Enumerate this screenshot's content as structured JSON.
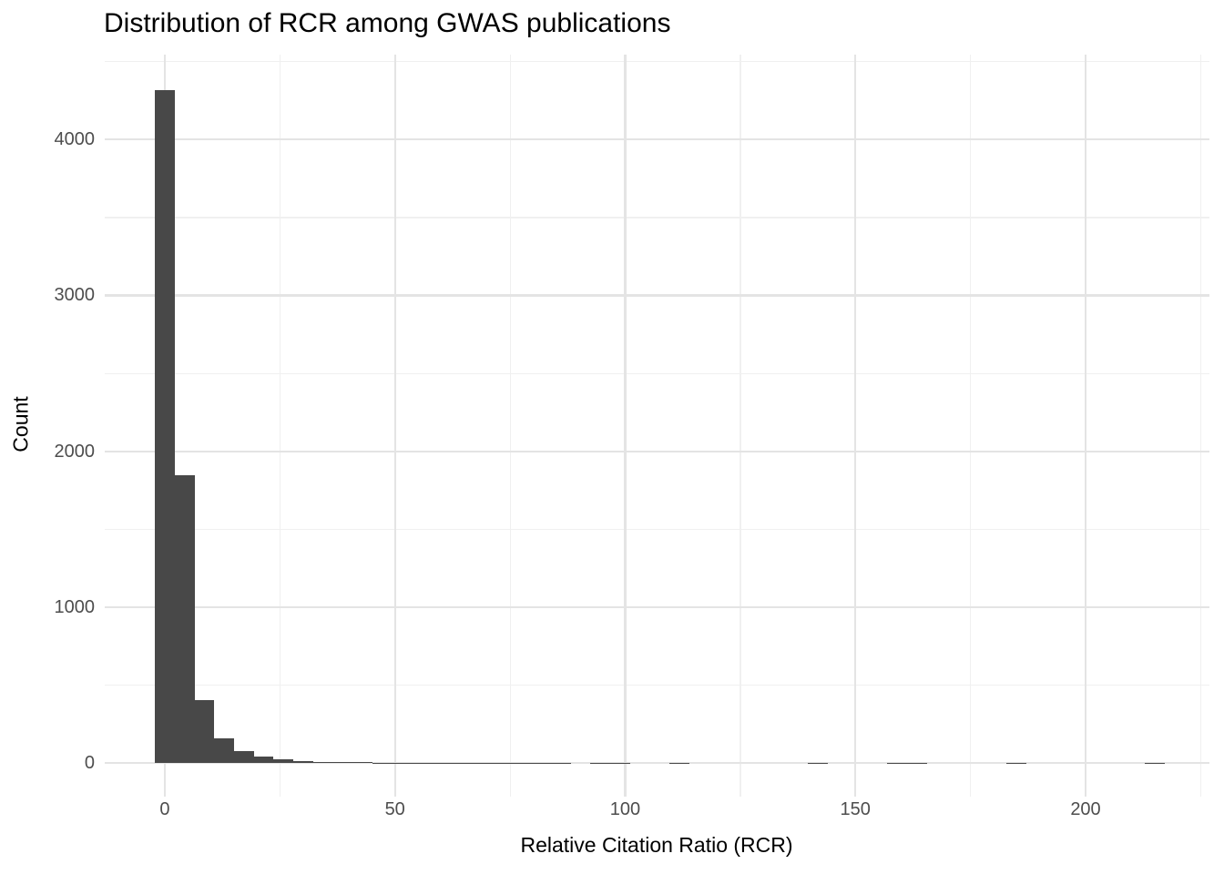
{
  "page": {
    "background_color": "#ffffff"
  },
  "chart": {
    "title": "Distribution of RCR among GWAS publications",
    "xlabel": "Relative Citation Ratio (RCR)",
    "ylabel": "Count"
  },
  "chart_data": {
    "type": "bar",
    "subtype": "histogram",
    "title": "Distribution of RCR among GWAS publications",
    "xlabel": "Relative Citation Ratio (RCR)",
    "ylabel": "Count",
    "bin_width": 4.3,
    "bin_centers": [
      0,
      4.3,
      8.6,
      12.9,
      17.2,
      21.5,
      25.8,
      30.1,
      34.4,
      38.7,
      43,
      47.3,
      51.6,
      55.9,
      60.2,
      64.5,
      68.8,
      73.1,
      77.4,
      81.7,
      86,
      90.3,
      94.6,
      98.9,
      103.2,
      107.5,
      111.8,
      116.1,
      120.4,
      124.7,
      129,
      133.3,
      137.6,
      141.9,
      146.2,
      150.5,
      154.8,
      159.1,
      163.4,
      167.7,
      172,
      176.3,
      180.6,
      184.9,
      189.2,
      193.5,
      197.8,
      202.1,
      206.4,
      210.7,
      215
    ],
    "counts": [
      4317,
      1847,
      403,
      160,
      78,
      45,
      26,
      15,
      11,
      8,
      7,
      5,
      3,
      4,
      3,
      4,
      4,
      2,
      2,
      2,
      1,
      0,
      5,
      2,
      0,
      0,
      2,
      0,
      0,
      0,
      0,
      0,
      0,
      2,
      0,
      0,
      0,
      2,
      2,
      0,
      0,
      0,
      0,
      2,
      0,
      0,
      0,
      0,
      0,
      0,
      2
    ],
    "x_major_ticks": [
      0,
      50,
      100,
      150,
      200
    ],
    "x_major_tick_labels": [
      "0",
      "50",
      "100",
      "150",
      "200"
    ],
    "x_minor_ticks": [
      25,
      75,
      125,
      175,
      225
    ],
    "y_major_ticks": [
      0,
      1000,
      2000,
      3000,
      4000
    ],
    "y_major_tick_labels": [
      "0",
      "1000",
      "2000",
      "3000",
      "4000"
    ],
    "y_minor_ticks": [
      500,
      1500,
      2500,
      3500,
      4500
    ],
    "xlim": [
      -13.1,
      226.9
    ],
    "ylim": [
      -216,
      4544
    ],
    "grid": "major-and-minor",
    "legend": "none",
    "bar_color": "#484848",
    "grid_major_color": "#e4e4e4",
    "grid_minor_color": "#f0f0f0",
    "axis_text_color": "#4d4d4d",
    "title_color": "#000000"
  }
}
